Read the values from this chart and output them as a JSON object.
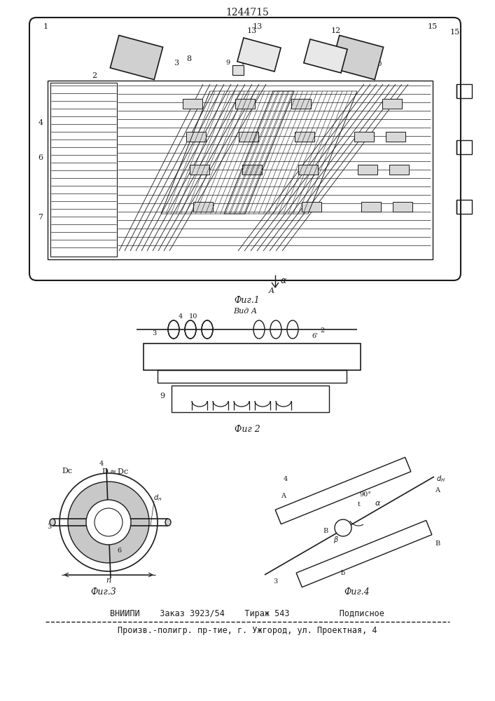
{
  "title": "1244715",
  "bottom_line1": "ВНИИПИ    Заказ 3923/54    Тираж 543          Подписное",
  "bottom_line2": "Произв.-полигр. пр-тие, г. Ужгород, ул. Проектная, 4",
  "fig1_label": "Фиг.1",
  "fig2_label": "Фиг 2",
  "fig3_label": "Фиг.3",
  "fig4_label": "Фиг.4",
  "vid_a_label": "Вид А",
  "bg_color": "#ffffff",
  "line_color": "#1a1a1a"
}
